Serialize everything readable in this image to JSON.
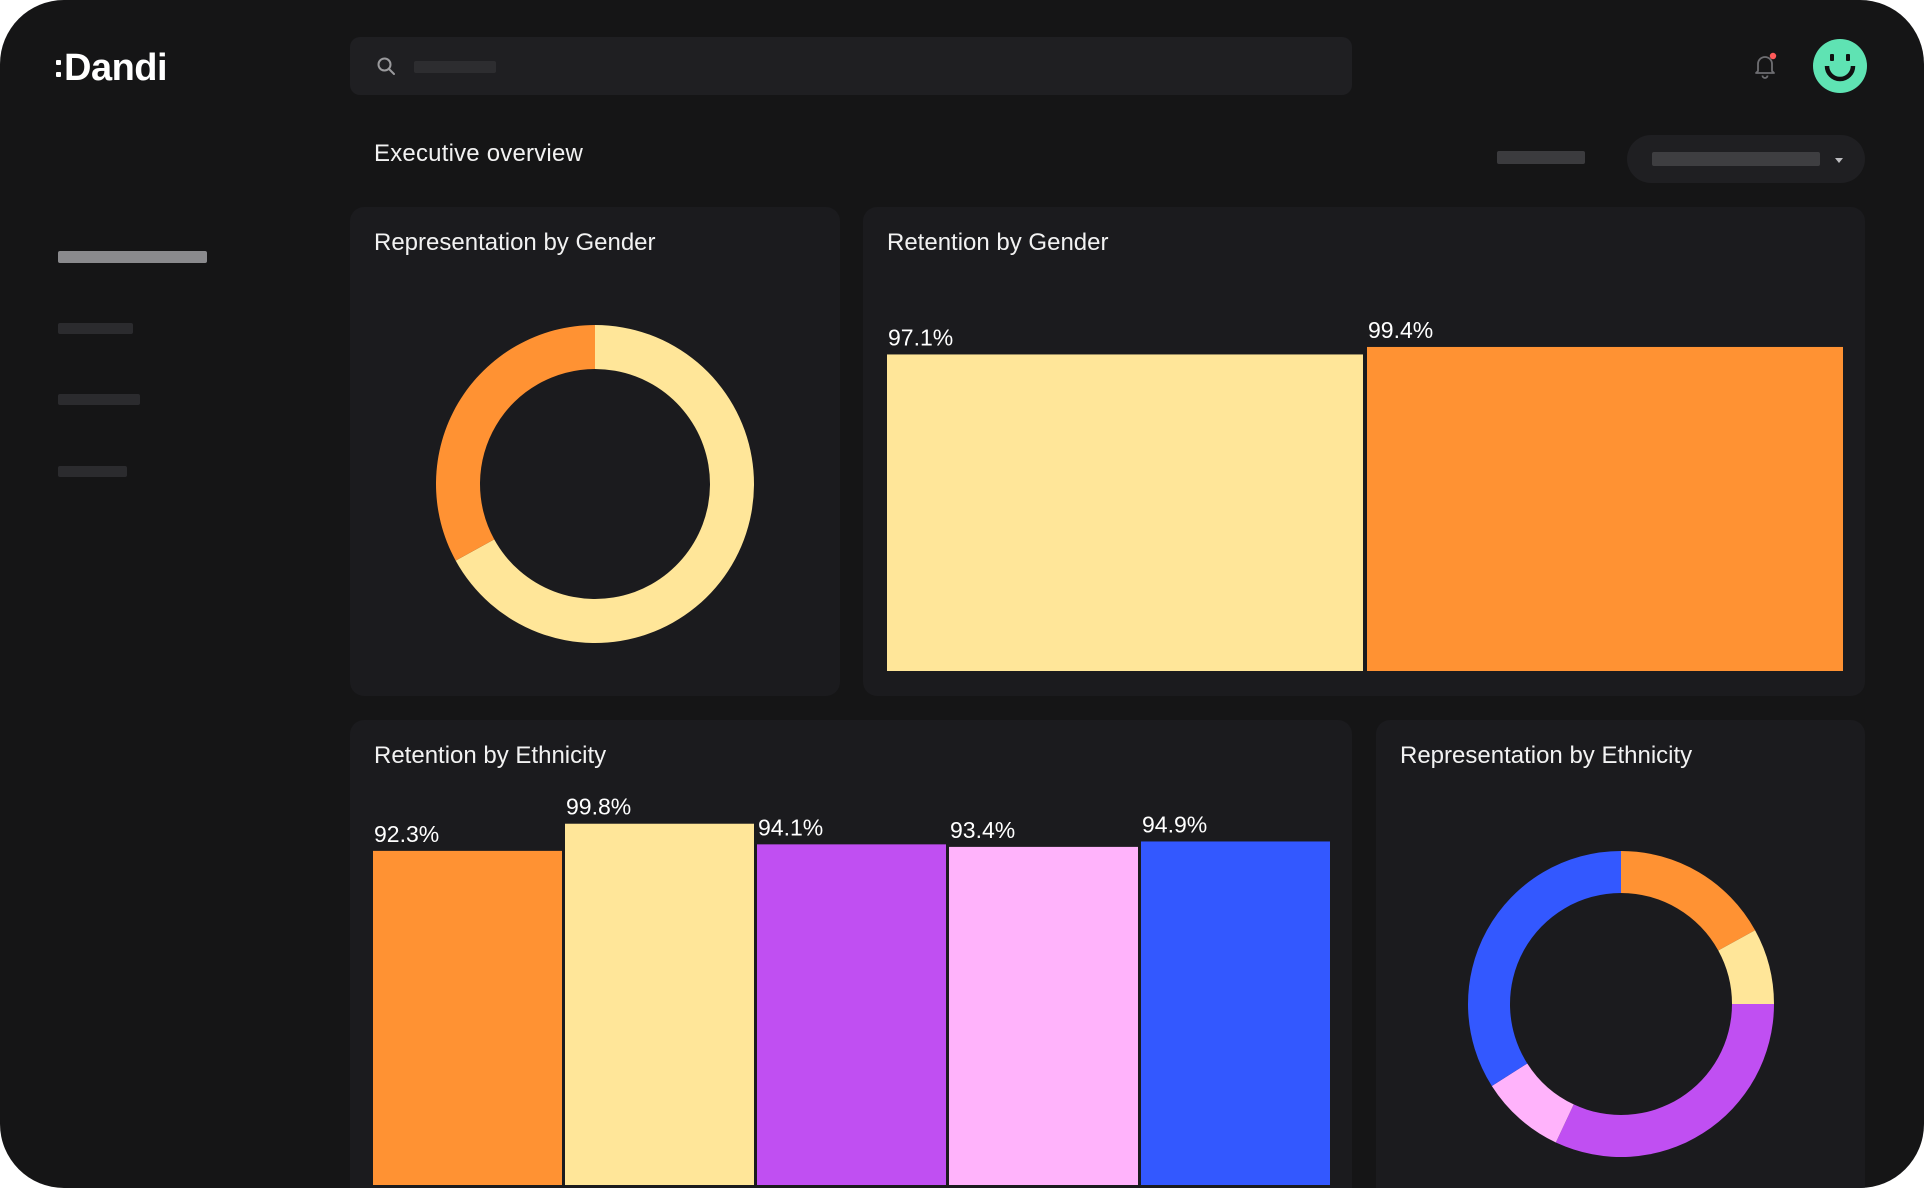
{
  "app": {
    "brand": "Dandi"
  },
  "header": {
    "search_icon": "search-icon",
    "bell_icon": "bell-icon",
    "avatar_icon": "smiley-avatar-icon",
    "notification_dot_color": "#ff5a5a"
  },
  "page": {
    "title": "Executive overview"
  },
  "colors": {
    "background": "#151516",
    "card": "#1b1b1e",
    "orange": "#ff9233",
    "yellow": "#ffe699",
    "purple": "#c04ff2",
    "pink": "#ffb3fb",
    "blue": "#3358ff",
    "avatar": "#5fe3b3"
  },
  "chart_data": [
    {
      "type": "pie",
      "title": "Representation by Gender",
      "donut": true,
      "slices": [
        {
          "value": 0.67,
          "color": "#ffe699"
        },
        {
          "value": 0.33,
          "color": "#ff9233"
        }
      ]
    },
    {
      "type": "bar",
      "title": "Retention by Gender",
      "values": [
        97.1,
        99.4
      ],
      "labels": [
        "97.1%",
        "99.4%"
      ],
      "colors": [
        "#ffe699",
        "#ff9233"
      ],
      "ylim": [
        0,
        100
      ]
    },
    {
      "type": "bar",
      "title": "Retention by Ethnicity",
      "values": [
        92.3,
        99.8,
        94.1,
        93.4,
        94.9
      ],
      "labels": [
        "92.3%",
        "99.8%",
        "94.1%",
        "93.4%",
        "94.9%"
      ],
      "colors": [
        "#ff9233",
        "#ffe699",
        "#c04ff2",
        "#ffb3fb",
        "#3358ff"
      ],
      "ylim": [
        0,
        100
      ]
    },
    {
      "type": "pie",
      "title": "Representation by Ethnicity",
      "donut": true,
      "slices": [
        {
          "value": 0.17,
          "color": "#ff9233"
        },
        {
          "value": 0.08,
          "color": "#ffe699"
        },
        {
          "value": 0.32,
          "color": "#c04ff2"
        },
        {
          "value": 0.09,
          "color": "#ffb3fb"
        },
        {
          "value": 0.34,
          "color": "#3358ff"
        }
      ]
    }
  ]
}
